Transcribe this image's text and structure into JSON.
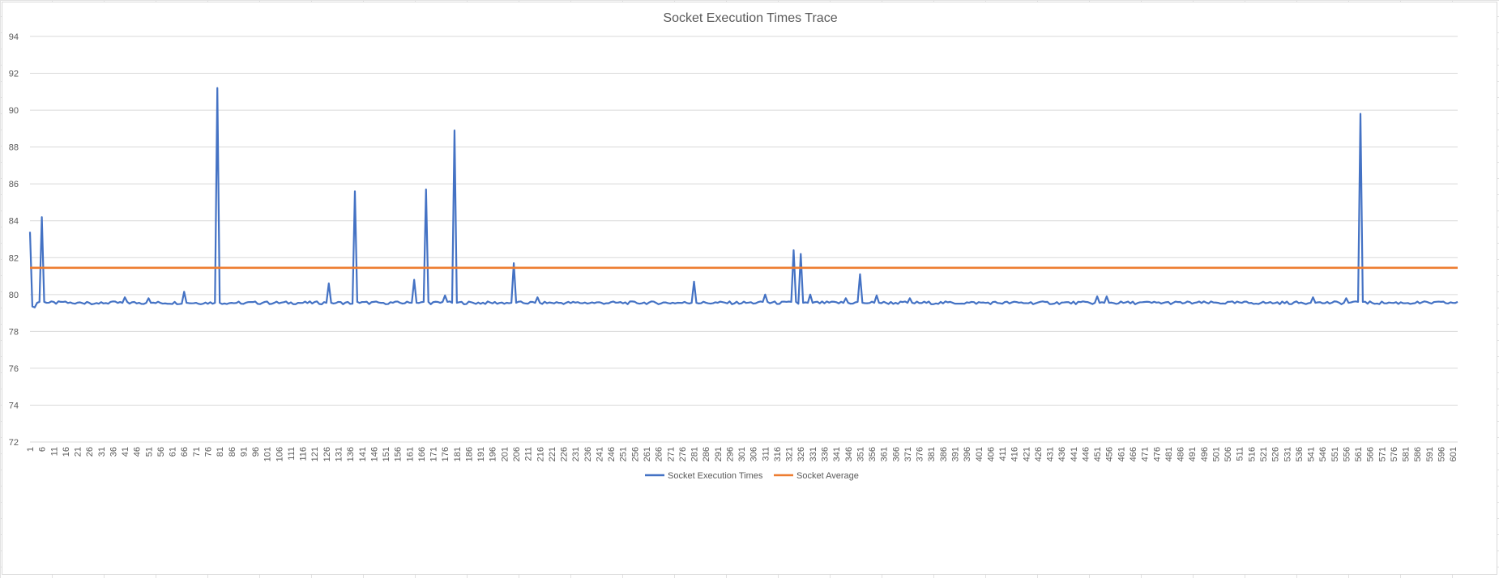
{
  "chart_data": {
    "type": "line",
    "title": "Socket Execution Times Trace",
    "xlabel": "",
    "ylabel": "",
    "ylim": [
      72,
      94
    ],
    "y_ticks": [
      72,
      74,
      76,
      78,
      80,
      82,
      84,
      86,
      88,
      90,
      92,
      94
    ],
    "x_range": [
      1,
      603
    ],
    "x_tick_start": 1,
    "x_tick_step": 5,
    "x_tick_labels": [
      "1",
      "6",
      "11",
      "16",
      "21",
      "26",
      "31",
      "36",
      "41",
      "46",
      "51",
      "56",
      "61",
      "66",
      "71",
      "76",
      "81",
      "86",
      "91",
      "96",
      "101",
      "106",
      "111",
      "116",
      "121",
      "126",
      "131",
      "136",
      "141",
      "146",
      "151",
      "156",
      "161",
      "166",
      "171",
      "176",
      "181",
      "186",
      "191",
      "196",
      "201",
      "206",
      "211",
      "216",
      "221",
      "226",
      "231",
      "236",
      "241",
      "246",
      "251",
      "256",
      "261",
      "266",
      "271",
      "276",
      "281",
      "286",
      "291",
      "296",
      "301",
      "306",
      "311",
      "316",
      "321",
      "326",
      "331",
      "336",
      "341",
      "346",
      "351",
      "356",
      "361",
      "366",
      "371",
      "376",
      "381",
      "386",
      "391",
      "396",
      "401",
      "406",
      "411",
      "416",
      "421",
      "426",
      "431",
      "436",
      "441",
      "446",
      "451",
      "456",
      "461",
      "466",
      "471",
      "476",
      "481",
      "486",
      "491",
      "496",
      "501",
      "506",
      "511",
      "516",
      "521",
      "526",
      "531",
      "536",
      "541",
      "546",
      "551",
      "556",
      "561",
      "566",
      "571",
      "576",
      "581",
      "586",
      "591",
      "596",
      "601"
    ],
    "grid": true,
    "legend_position": "bottom",
    "series": [
      {
        "name": "Socket Execution Times",
        "color": "#4472c4",
        "baseline": 79.55,
        "points": [
          [
            1,
            83.4
          ],
          [
            2,
            79.35
          ],
          [
            3,
            79.3
          ],
          [
            4,
            79.55
          ],
          [
            5,
            79.6
          ],
          [
            6,
            84.2
          ],
          [
            7,
            79.6
          ],
          [
            8,
            79.55
          ],
          [
            15,
            79.6
          ],
          [
            20,
            79.5
          ],
          [
            25,
            79.6
          ],
          [
            30,
            79.5
          ],
          [
            35,
            79.6
          ],
          [
            40,
            79.55
          ],
          [
            41,
            79.85
          ],
          [
            42,
            79.6
          ],
          [
            50,
            79.55
          ],
          [
            51,
            79.8
          ],
          [
            52,
            79.55
          ],
          [
            65,
            79.5
          ],
          [
            66,
            80.15
          ],
          [
            67,
            79.55
          ],
          [
            79,
            79.55
          ],
          [
            80,
            91.2
          ],
          [
            81,
            79.55
          ],
          [
            90,
            79.5
          ],
          [
            100,
            79.6
          ],
          [
            126,
            79.55
          ],
          [
            127,
            80.6
          ],
          [
            128,
            79.55
          ],
          [
            137,
            79.5
          ],
          [
            138,
            85.6
          ],
          [
            139,
            79.6
          ],
          [
            150,
            79.55
          ],
          [
            162,
            79.55
          ],
          [
            163,
            80.8
          ],
          [
            164,
            79.55
          ],
          [
            167,
            79.6
          ],
          [
            168,
            85.7
          ],
          [
            169,
            79.6
          ],
          [
            175,
            79.6
          ],
          [
            176,
            79.95
          ],
          [
            177,
            79.6
          ],
          [
            179,
            79.55
          ],
          [
            180,
            88.9
          ],
          [
            181,
            79.55
          ],
          [
            204,
            79.55
          ],
          [
            205,
            81.7
          ],
          [
            206,
            79.55
          ],
          [
            214,
            79.55
          ],
          [
            215,
            79.85
          ],
          [
            216,
            79.55
          ],
          [
            280,
            79.55
          ],
          [
            281,
            80.7
          ],
          [
            282,
            79.55
          ],
          [
            310,
            79.6
          ],
          [
            311,
            80.0
          ],
          [
            312,
            79.6
          ],
          [
            322,
            79.6
          ],
          [
            323,
            82.4
          ],
          [
            324,
            79.6
          ],
          [
            325,
            79.5
          ],
          [
            326,
            82.2
          ],
          [
            327,
            79.55
          ],
          [
            329,
            79.55
          ],
          [
            330,
            80.0
          ],
          [
            331,
            79.55
          ],
          [
            344,
            79.55
          ],
          [
            345,
            79.8
          ],
          [
            346,
            79.55
          ],
          [
            350,
            79.6
          ],
          [
            351,
            81.1
          ],
          [
            352,
            79.55
          ],
          [
            357,
            79.55
          ],
          [
            358,
            79.95
          ],
          [
            359,
            79.55
          ],
          [
            371,
            79.55
          ],
          [
            372,
            79.8
          ],
          [
            373,
            79.55
          ],
          [
            450,
            79.55
          ],
          [
            451,
            79.9
          ],
          [
            452,
            79.55
          ],
          [
            454,
            79.55
          ],
          [
            455,
            79.9
          ],
          [
            456,
            79.55
          ],
          [
            541,
            79.55
          ],
          [
            542,
            79.85
          ],
          [
            543,
            79.55
          ],
          [
            555,
            79.55
          ],
          [
            556,
            79.8
          ],
          [
            557,
            79.55
          ],
          [
            561,
            79.6
          ],
          [
            562,
            89.8
          ],
          [
            563,
            79.6
          ],
          [
            603,
            79.6
          ]
        ]
      },
      {
        "name": "Socket Average",
        "color": "#ed7d31",
        "value": 81.45
      }
    ]
  }
}
